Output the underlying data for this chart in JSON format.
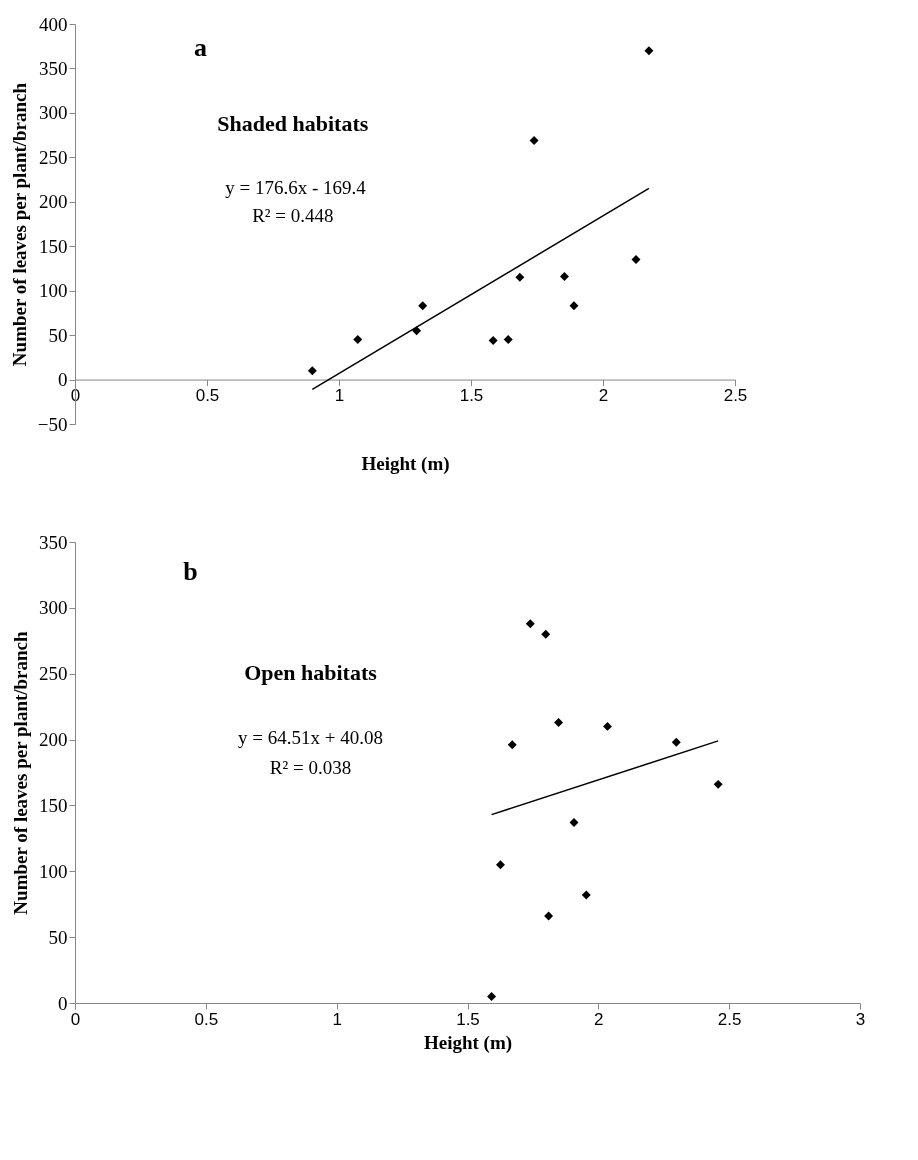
{
  "chart_data": [
    {
      "type": "scatter",
      "xlabel": "Height (m)",
      "ylabel": "Number of leaves per plant/branch",
      "xlim": [
        0,
        2.5
      ],
      "ylim": [
        -50,
        400
      ],
      "xticks": [
        0,
        0.5,
        1,
        1.5,
        2,
        2.5
      ],
      "yticks": [
        -50,
        0,
        50,
        100,
        150,
        200,
        250,
        300,
        350,
        400
      ],
      "grid": false,
      "annotations": [
        "a",
        "Shaded habitats",
        "y = 176.6x - 169.4",
        "R² = 0.448"
      ],
      "series": [
        {
          "marker": "diamond",
          "color": "#000000",
          "x": [
            0.899,
            1.071,
            1.294,
            1.317,
            1.584,
            1.641,
            1.685,
            1.739,
            1.854,
            1.89,
            2.125,
            2.174
          ],
          "values": [
            10,
            45,
            55,
            83,
            44,
            45,
            115,
            269,
            116,
            83,
            135,
            370
          ]
        },
        {
          "type": "line",
          "color": "#000000",
          "x": [
            0.899,
            2.174
          ],
          "values": [
            -11,
            215
          ]
        }
      ]
    },
    {
      "type": "scatter",
      "xlabel": "Height (m)",
      "ylabel": "Number of leaves per plant/branch",
      "xlim": [
        0,
        3
      ],
      "ylim": [
        0,
        350
      ],
      "xticks": [
        0,
        0.5,
        1,
        1.5,
        2,
        2.5,
        3
      ],
      "yticks": [
        0,
        50,
        100,
        150,
        200,
        250,
        300,
        350
      ],
      "grid": false,
      "annotations": [
        "b",
        "Open habitats",
        "y = 64.51x + 40.08",
        "R² = 0.038"
      ],
      "series": [
        {
          "marker": "diamond",
          "color": "#000000",
          "x": [
            1.592,
            1.626,
            1.671,
            1.74,
            1.799,
            1.81,
            1.848,
            1.907,
            1.954,
            2.035,
            2.298,
            2.458
          ],
          "values": [
            5,
            105,
            196,
            288,
            280,
            66,
            213,
            137,
            82,
            210,
            198,
            166
          ]
        },
        {
          "type": "line",
          "color": "#000000",
          "x": [
            1.592,
            2.458
          ],
          "values": [
            143,
            199
          ]
        }
      ]
    }
  ]
}
